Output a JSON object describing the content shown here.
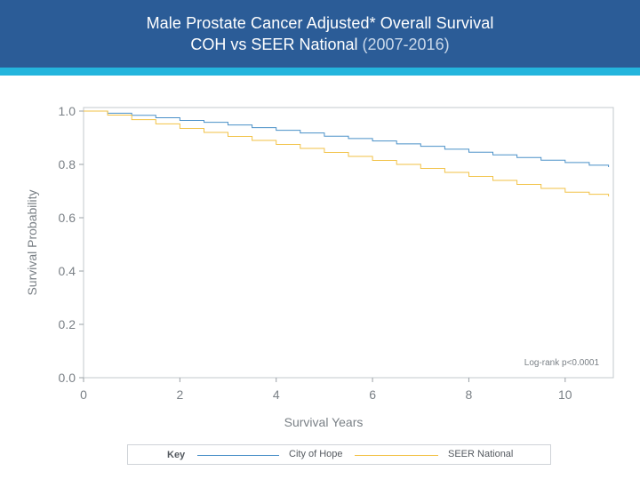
{
  "header": {
    "title_line1": "Male Prostate Cancer Adjusted* Overall Survival",
    "title_line2_main": "COH vs SEER National",
    "title_line2_sub": "(2007-2016)"
  },
  "colors": {
    "header_bg": "#2b5c97",
    "accent": "#24b5dd",
    "city_of_hope": "#4a90c8",
    "seer_national": "#f2c246",
    "axis": "#9aa0a6",
    "text": "#666b70"
  },
  "key": {
    "label": "Key",
    "items": [
      {
        "name": "City of Hope",
        "color": "#4a90c8"
      },
      {
        "name": "SEER National",
        "color": "#f2c246"
      }
    ]
  },
  "chart_data": {
    "type": "line",
    "title": "Male Prostate Cancer Adjusted* Overall Survival COH vs SEER National (2007-2016)",
    "xlabel": "Survival Years",
    "ylabel": "Survival Probability",
    "xlim": [
      0,
      11
    ],
    "ylim": [
      0,
      1
    ],
    "x_ticks": [
      0,
      2,
      4,
      6,
      8,
      10
    ],
    "x_tick_labels": [
      "0",
      "2",
      "4",
      "6",
      "8",
      "10"
    ],
    "y_ticks": [
      0.0,
      0.2,
      0.4,
      0.6,
      0.8,
      1.0
    ],
    "y_tick_labels": [
      "0.0",
      "0.2",
      "0.4",
      "0.6",
      "0.8",
      "1.0"
    ],
    "annotation": "Log-rank p<0.0001",
    "series": [
      {
        "name": "City of Hope",
        "color": "#4a90c8",
        "x": [
          0,
          0.5,
          1,
          1.5,
          2,
          2.5,
          3,
          3.5,
          4,
          4.5,
          5,
          5.5,
          6,
          6.5,
          7,
          7.5,
          8,
          8.5,
          9,
          9.5,
          10,
          10.5,
          10.9
        ],
        "y": [
          1.0,
          0.992,
          0.984,
          0.975,
          0.965,
          0.958,
          0.948,
          0.938,
          0.928,
          0.918,
          0.906,
          0.897,
          0.888,
          0.877,
          0.868,
          0.857,
          0.846,
          0.836,
          0.826,
          0.816,
          0.807,
          0.797,
          0.79
        ]
      },
      {
        "name": "SEER National",
        "color": "#f2c246",
        "x": [
          0,
          0.5,
          1,
          1.5,
          2,
          2.5,
          3,
          3.5,
          4,
          4.5,
          5,
          5.5,
          6,
          6.5,
          7,
          7.5,
          8,
          8.5,
          9,
          9.5,
          10,
          10.5,
          10.9
        ],
        "y": [
          1.0,
          0.985,
          0.968,
          0.952,
          0.935,
          0.92,
          0.905,
          0.89,
          0.875,
          0.86,
          0.845,
          0.83,
          0.815,
          0.8,
          0.785,
          0.77,
          0.755,
          0.74,
          0.725,
          0.71,
          0.696,
          0.688,
          0.68
        ]
      }
    ]
  }
}
